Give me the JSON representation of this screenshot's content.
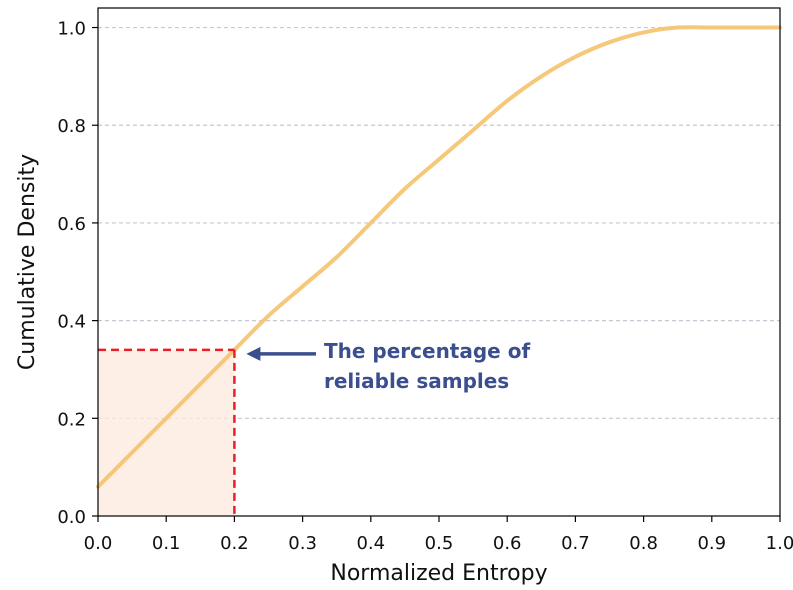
{
  "chart_data": {
    "type": "line",
    "title": "",
    "xlabel": "Normalized Entropy",
    "ylabel": "Cumulative Density",
    "xlim": [
      0.0,
      1.0
    ],
    "ylim": [
      0.0,
      1.04
    ],
    "xticks": [
      "0.0",
      "0.1",
      "0.2",
      "0.3",
      "0.4",
      "0.5",
      "0.6",
      "0.7",
      "0.8",
      "0.9",
      "1.0"
    ],
    "yticks": [
      "0.0",
      "0.2",
      "0.4",
      "0.6",
      "0.8",
      "1.0"
    ],
    "grid": "horizontal-dashed",
    "series": [
      {
        "color": "#f5c26b",
        "x": [
          0.0,
          0.05,
          0.1,
          0.15,
          0.2,
          0.25,
          0.3,
          0.35,
          0.4,
          0.45,
          0.5,
          0.55,
          0.6,
          0.65,
          0.7,
          0.75,
          0.8,
          0.85,
          0.9,
          0.95,
          1.0
        ],
        "y": [
          0.06,
          0.13,
          0.2,
          0.27,
          0.34,
          0.41,
          0.47,
          0.53,
          0.6,
          0.67,
          0.73,
          0.79,
          0.85,
          0.9,
          0.94,
          0.97,
          0.99,
          1.0,
          1.0,
          1.0,
          1.0
        ]
      }
    ],
    "annotation": {
      "text_line1": "The percentage of",
      "text_line2": "reliable samples",
      "color": "#3b4f8f",
      "marker_x": 0.2,
      "marker_y": 0.34,
      "marker_color": "#e8202a",
      "shade_color": "#fde8dc"
    }
  }
}
